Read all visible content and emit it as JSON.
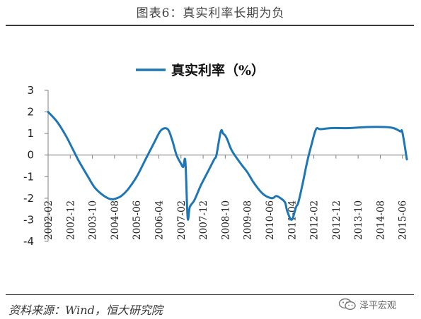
{
  "title": "图表6：真实利率长期为负",
  "source": "资料来源：Wind，恒大研究院",
  "brand": {
    "label": "泽平宏观",
    "icon": "wechat-icon"
  },
  "colors": {
    "series": "#1f76b5",
    "axis": "#7f7f7f",
    "rule": "#3a3a3a"
  },
  "chart_data": {
    "type": "line",
    "title": "",
    "xlabel": "",
    "ylabel": "",
    "ylim": [
      -4,
      3
    ],
    "yticks": [
      "3",
      "2",
      "1",
      "0",
      "-1",
      "-2",
      "-3",
      "-4"
    ],
    "x_range": [
      "2002-02",
      "2015-08"
    ],
    "xticks": [
      "2002-02",
      "2002-12",
      "2003-10",
      "2004-08",
      "2005-06",
      "2006-04",
      "2007-02",
      "2007-12",
      "2008-10",
      "2009-08",
      "2010-06",
      "2011-04",
      "2012-02",
      "2012-12",
      "2013-10",
      "2014-08",
      "2015-06"
    ],
    "legend": {
      "position": "top-center"
    },
    "grid": false,
    "series": [
      {
        "name": "真实利率（%）",
        "x": [
          "2002-02",
          "2002-06",
          "2002-10",
          "2003-01",
          "2003-04",
          "2003-08",
          "2003-11",
          "2004-02",
          "2004-05",
          "2004-07",
          "2004-09",
          "2004-11",
          "2005-02",
          "2005-06",
          "2005-10",
          "2006-02",
          "2006-05",
          "2006-08",
          "2006-10",
          "2006-12",
          "2007-02",
          "2007-03",
          "2007-04",
          "2007-05",
          "2007-06",
          "2007-08",
          "2007-11",
          "2008-02",
          "2008-05",
          "2008-06",
          "2008-08",
          "2008-09",
          "2008-10",
          "2008-11",
          "2009-01",
          "2009-05",
          "2009-08",
          "2009-11",
          "2010-03",
          "2010-07",
          "2010-09",
          "2010-11",
          "2011-01",
          "2011-02",
          "2011-04",
          "2011-06",
          "2011-07",
          "2011-09",
          "2011-11",
          "2012-01",
          "2012-03",
          "2012-05",
          "2012-10",
          "2013-06",
          "2014-02",
          "2014-10",
          "2015-02",
          "2015-05",
          "2015-06",
          "2015-08"
        ],
        "y": [
          2.0,
          1.55,
          0.9,
          0.3,
          -0.3,
          -1.0,
          -1.5,
          -1.8,
          -2.0,
          -2.05,
          -2.0,
          -1.9,
          -1.6,
          -1.0,
          -0.2,
          0.6,
          1.15,
          1.2,
          0.7,
          0.0,
          -0.4,
          -0.55,
          -0.3,
          -2.9,
          -2.4,
          -2.1,
          -1.4,
          -0.8,
          -0.2,
          0.0,
          1.1,
          1.0,
          0.9,
          0.7,
          0.2,
          -0.4,
          -0.8,
          -1.3,
          -1.8,
          -2.0,
          -1.9,
          -2.0,
          -2.2,
          -2.6,
          -3.0,
          -2.4,
          -2.2,
          -1.3,
          -0.3,
          0.5,
          1.2,
          1.2,
          1.25,
          1.25,
          1.3,
          1.3,
          1.25,
          1.1,
          1.05,
          -0.2
        ]
      }
    ]
  }
}
